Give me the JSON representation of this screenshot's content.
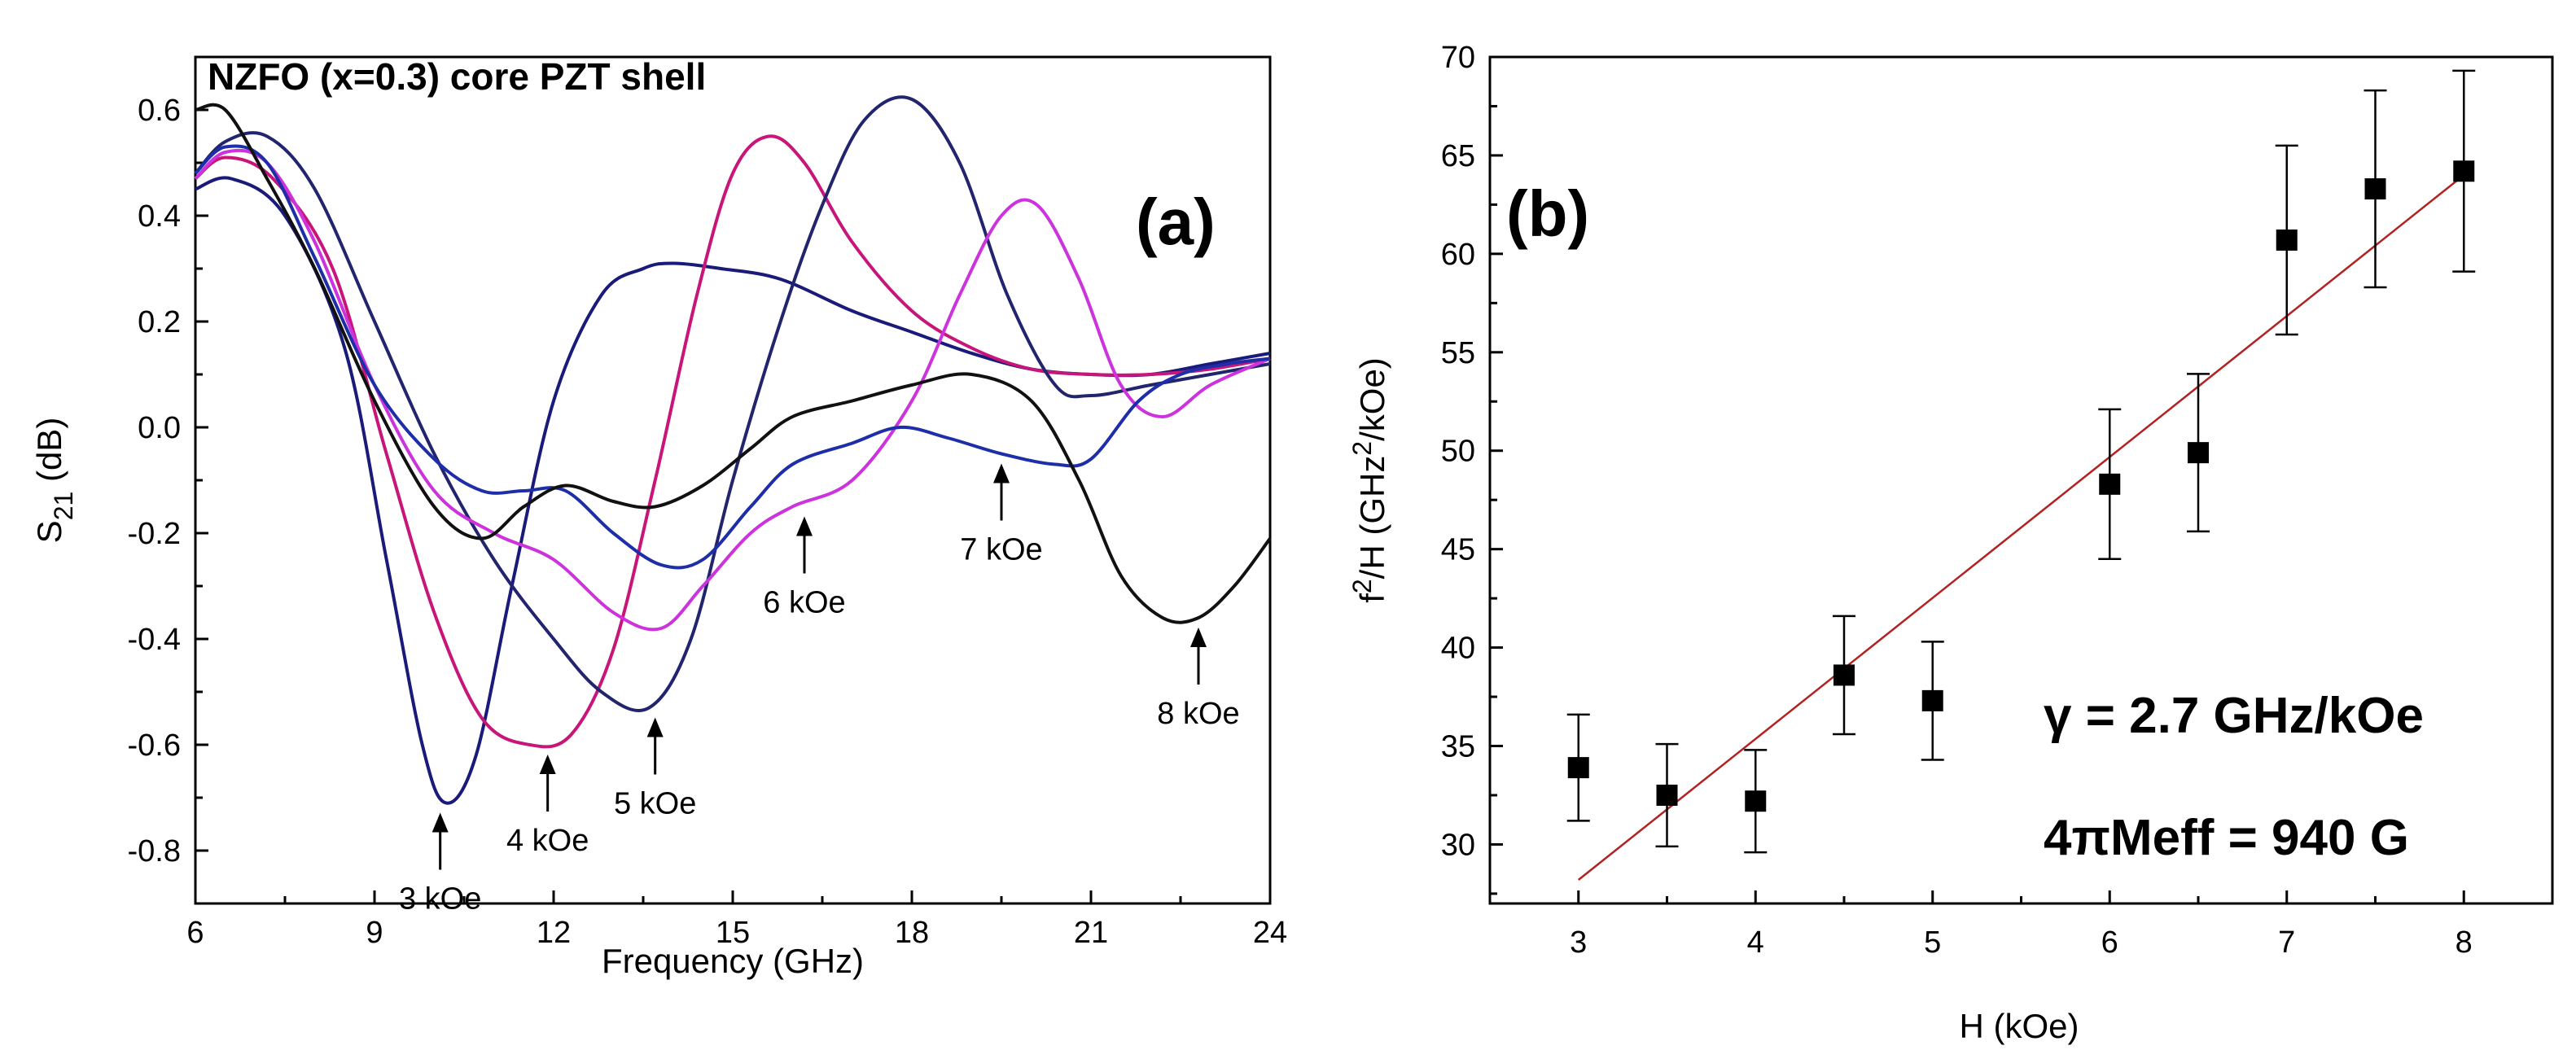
{
  "chart_data": [
    {
      "type": "line",
      "panel": "(a)",
      "title": "NZFO (x=0.3) core PZT shell",
      "xlabel": "Frequency (GHz)",
      "ylabel_main": "S",
      "ylabel_sub": "21",
      "ylabel_unit": " (dB)",
      "xlim": [
        6,
        24
      ],
      "ylim": [
        -0.9,
        0.7
      ],
      "xticks": [
        "6",
        "9",
        "12",
        "15",
        "18",
        "21",
        "24"
      ],
      "yticks": [
        "-0.8",
        "-0.6",
        "-0.4",
        "-0.2",
        "0.0",
        "0.2",
        "0.4",
        "0.6"
      ],
      "series": [
        {
          "name": "3 kOe",
          "color": "#1a1a7a",
          "x": [
            6,
            6.6,
            7.5,
            8.5,
            9.2,
            9.8,
            10.2,
            10.7,
            11.3,
            12,
            12.8,
            13.5,
            14,
            14.8,
            15.8,
            17,
            18,
            19,
            20,
            21,
            22,
            23,
            24
          ],
          "y": [
            0.45,
            0.47,
            0.4,
            0.15,
            -0.25,
            -0.6,
            -0.71,
            -0.62,
            -0.3,
            0.05,
            0.25,
            0.3,
            0.31,
            0.3,
            0.28,
            0.22,
            0.18,
            0.14,
            0.11,
            0.1,
            0.1,
            0.12,
            0.14
          ]
        },
        {
          "name": "4 kOe",
          "color": "#c8157a",
          "x": [
            6,
            6.5,
            7.3,
            8.3,
            9.2,
            10,
            10.8,
            11.6,
            12.3,
            13,
            13.7,
            14.4,
            15,
            15.6,
            16.2,
            17,
            18,
            19,
            20,
            21,
            22,
            23,
            24
          ],
          "y": [
            0.47,
            0.51,
            0.47,
            0.3,
            -0.05,
            -0.35,
            -0.55,
            -0.6,
            -0.58,
            -0.42,
            -0.1,
            0.25,
            0.48,
            0.55,
            0.5,
            0.35,
            0.22,
            0.15,
            0.11,
            0.1,
            0.1,
            0.11,
            0.13
          ]
        },
        {
          "name": "5 kOe",
          "color": "#22256e",
          "x": [
            6,
            6.5,
            7.2,
            8,
            9,
            10,
            11,
            12,
            12.8,
            13.6,
            14.3,
            15,
            15.8,
            16.5,
            17.2,
            18,
            18.8,
            19.6,
            20.4,
            21,
            22,
            23,
            24
          ],
          "y": [
            0.48,
            0.54,
            0.55,
            0.45,
            0.2,
            -0.05,
            -0.25,
            -0.4,
            -0.5,
            -0.53,
            -0.4,
            -0.1,
            0.2,
            0.42,
            0.58,
            0.62,
            0.5,
            0.25,
            0.08,
            0.06,
            0.08,
            0.1,
            0.12
          ]
        },
        {
          "name": "6 kOe",
          "color": "#cc33dd",
          "x": [
            6,
            6.5,
            7.2,
            8,
            9,
            10,
            11,
            12,
            13,
            13.8,
            14.5,
            15.3,
            16,
            17,
            18,
            18.8,
            19.5,
            20.1,
            20.8,
            21.5,
            22.2,
            23,
            24
          ],
          "y": [
            0.47,
            0.52,
            0.5,
            0.35,
            0.08,
            -0.12,
            -0.2,
            -0.25,
            -0.35,
            -0.38,
            -0.3,
            -0.2,
            -0.15,
            -0.1,
            0.05,
            0.25,
            0.4,
            0.42,
            0.28,
            0.08,
            0.02,
            0.08,
            0.13
          ]
        },
        {
          "name": "7 kOe",
          "color": "#1e2ea8",
          "x": [
            6,
            6.5,
            7.2,
            8,
            9,
            10,
            10.8,
            11.5,
            12.2,
            13,
            13.8,
            14.5,
            15.3,
            16,
            17,
            17.8,
            18.6,
            19.5,
            20.4,
            21,
            21.8,
            22.5,
            23.3,
            24
          ],
          "y": [
            0.48,
            0.53,
            0.5,
            0.32,
            0.08,
            -0.06,
            -0.12,
            -0.12,
            -0.12,
            -0.2,
            -0.26,
            -0.25,
            -0.15,
            -0.07,
            -0.03,
            0.0,
            -0.02,
            -0.05,
            -0.07,
            -0.06,
            0.05,
            0.1,
            0.12,
            0.13
          ]
        },
        {
          "name": "8 kOe",
          "color": "#111111",
          "x": [
            6,
            6.5,
            7.2,
            8,
            9,
            10,
            10.8,
            11.5,
            12.2,
            13,
            13.7,
            14.5,
            15.3,
            16,
            17,
            18,
            19,
            20,
            20.8,
            21.5,
            22.2,
            22.8,
            23.4,
            24
          ],
          "y": [
            0.6,
            0.6,
            0.47,
            0.3,
            0.05,
            -0.15,
            -0.21,
            -0.15,
            -0.11,
            -0.14,
            -0.15,
            -0.11,
            -0.04,
            0.02,
            0.05,
            0.08,
            0.1,
            0.05,
            -0.1,
            -0.28,
            -0.36,
            -0.36,
            -0.3,
            -0.21
          ]
        }
      ],
      "annotations": [
        {
          "text": "3 kOe",
          "x": 10.1,
          "y": -0.71
        },
        {
          "text": "4 kOe",
          "x": 11.9,
          "y": -0.6
        },
        {
          "text": "5 kOe",
          "x": 13.7,
          "y": -0.53
        },
        {
          "text": "6 kOe",
          "x": 16.2,
          "y": -0.15
        },
        {
          "text": "7 kOe",
          "x": 19.5,
          "y": -0.05
        },
        {
          "text": "8 kOe",
          "x": 22.8,
          "y": -0.36
        }
      ],
      "panel_label": "(a)"
    },
    {
      "type": "scatter",
      "panel": "(b)",
      "xlabel": "H (kOe)",
      "ylabel_parts": [
        "f",
        "2",
        "/H (GHz",
        "2",
        "/kOe)"
      ],
      "xlim": [
        2.5,
        8.5
      ],
      "ylim": [
        27,
        70
      ],
      "xticks": [
        "3",
        "4",
        "5",
        "6",
        "7",
        "8"
      ],
      "yticks": [
        "30",
        "35",
        "40",
        "45",
        "50",
        "55",
        "60",
        "65",
        "70"
      ],
      "points": [
        {
          "x": 3.0,
          "y": 33.9,
          "err": 2.7
        },
        {
          "x": 3.5,
          "y": 32.5,
          "err": 2.6
        },
        {
          "x": 4.0,
          "y": 32.2,
          "err": 2.6
        },
        {
          "x": 4.5,
          "y": 38.6,
          "err": 3.0
        },
        {
          "x": 5.0,
          "y": 37.3,
          "err": 3.0
        },
        {
          "x": 6.0,
          "y": 48.3,
          "err": 3.8
        },
        {
          "x": 6.5,
          "y": 49.9,
          "err": 4.0
        },
        {
          "x": 7.0,
          "y": 60.7,
          "err": 4.8
        },
        {
          "x": 7.5,
          "y": 63.3,
          "err": 5.0
        },
        {
          "x": 8.0,
          "y": 64.2,
          "err": 5.1
        }
      ],
      "fit": {
        "x": [
          3.0,
          8.0
        ],
        "y": [
          28.2,
          64.0
        ],
        "color": "#b22222"
      },
      "annotation_gamma": "γ = 2.7 GHz/kOe",
      "annotation_m": "4πMeff = 940 G",
      "panel_label": "(b)"
    }
  ]
}
